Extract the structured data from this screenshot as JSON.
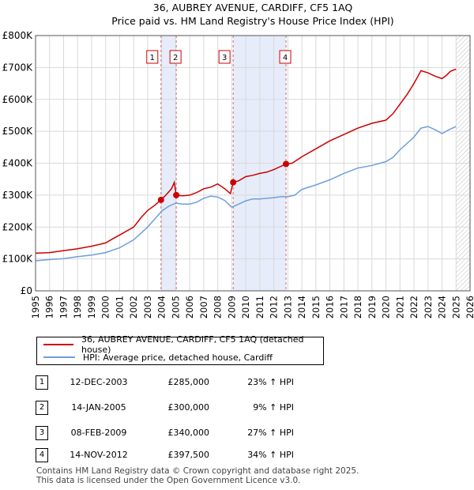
{
  "chart_data": {
    "type": "line",
    "title": "36, AUBREY AVENUE, CARDIFF, CF5 1AQ",
    "subtitle": "Price paid vs. HM Land Registry's House Price Index (HPI)",
    "xlim": [
      1995,
      2026
    ],
    "ylim": [
      0,
      800000
    ],
    "x_ticks": [
      "1995",
      "1996",
      "1997",
      "1998",
      "1999",
      "2000",
      "2001",
      "2002",
      "2003",
      "2004",
      "2005",
      "2006",
      "2007",
      "2008",
      "2009",
      "2010",
      "2011",
      "2012",
      "2013",
      "2014",
      "2015",
      "2016",
      "2017",
      "2018",
      "2019",
      "2020",
      "2021",
      "2022",
      "2023",
      "2024",
      "2025",
      "2026"
    ],
    "y_ticks": [
      {
        "value": 0,
        "label": "£0"
      },
      {
        "value": 100000,
        "label": "£100K"
      },
      {
        "value": 200000,
        "label": "£200K"
      },
      {
        "value": 300000,
        "label": "£300K"
      },
      {
        "value": 400000,
        "label": "£400K"
      },
      {
        "value": 500000,
        "label": "£500K"
      },
      {
        "value": 600000,
        "label": "£600K"
      },
      {
        "value": 700000,
        "label": "£700K"
      },
      {
        "value": 800000,
        "label": "£800K"
      }
    ],
    "series": [
      {
        "name": "36, AUBREY AVENUE, CARDIFF, CF5 1AQ (detached house)",
        "color": "#cc0000",
        "points": [
          [
            1995,
            118000
          ],
          [
            1996,
            120000
          ],
          [
            1997,
            126000
          ],
          [
            1998,
            132000
          ],
          [
            1999,
            140000
          ],
          [
            2000,
            150000
          ],
          [
            2000.5,
            163000
          ],
          [
            2001,
            175000
          ],
          [
            2002,
            200000
          ],
          [
            2002.5,
            228000
          ],
          [
            2003,
            252000
          ],
          [
            2003.5,
            268000
          ],
          [
            2003.95,
            285000
          ],
          [
            2004.3,
            300000
          ],
          [
            2004.7,
            320000
          ],
          [
            2004.9,
            340000
          ],
          [
            2005.04,
            300000
          ],
          [
            2005.5,
            298000
          ],
          [
            2006,
            300000
          ],
          [
            2006.5,
            308000
          ],
          [
            2007,
            320000
          ],
          [
            2007.5,
            325000
          ],
          [
            2008,
            335000
          ],
          [
            2008.5,
            320000
          ],
          [
            2008.9,
            305000
          ],
          [
            2009.1,
            340000
          ],
          [
            2009.5,
            345000
          ],
          [
            2010,
            358000
          ],
          [
            2010.5,
            362000
          ],
          [
            2011,
            368000
          ],
          [
            2011.5,
            372000
          ],
          [
            2012,
            380000
          ],
          [
            2012.87,
            397500
          ],
          [
            2013.3,
            400000
          ],
          [
            2014,
            420000
          ],
          [
            2015,
            445000
          ],
          [
            2016,
            470000
          ],
          [
            2017,
            490000
          ],
          [
            2018,
            510000
          ],
          [
            2019,
            525000
          ],
          [
            2020,
            535000
          ],
          [
            2020.5,
            555000
          ],
          [
            2021,
            585000
          ],
          [
            2021.5,
            615000
          ],
          [
            2022,
            650000
          ],
          [
            2022.5,
            690000
          ],
          [
            2023,
            683000
          ],
          [
            2023.5,
            673000
          ],
          [
            2024,
            665000
          ],
          [
            2024.3,
            675000
          ],
          [
            2024.6,
            688000
          ],
          [
            2025,
            695000
          ]
        ]
      },
      {
        "name": "HPI: Average price, detached house, Cardiff",
        "color": "#6f9fd8",
        "points": [
          [
            1995,
            94000
          ],
          [
            1996,
            98000
          ],
          [
            1997,
            101000
          ],
          [
            1998,
            107000
          ],
          [
            1999,
            112000
          ],
          [
            2000,
            120000
          ],
          [
            2001,
            135000
          ],
          [
            2002,
            160000
          ],
          [
            2003,
            200000
          ],
          [
            2003.5,
            225000
          ],
          [
            2004,
            250000
          ],
          [
            2004.5,
            265000
          ],
          [
            2005,
            275000
          ],
          [
            2005.5,
            272000
          ],
          [
            2006,
            272000
          ],
          [
            2006.5,
            278000
          ],
          [
            2007,
            290000
          ],
          [
            2007.5,
            297000
          ],
          [
            2008,
            294000
          ],
          [
            2008.5,
            283000
          ],
          [
            2009,
            262000
          ],
          [
            2009.5,
            272000
          ],
          [
            2010,
            282000
          ],
          [
            2010.5,
            288000
          ],
          [
            2011,
            288000
          ],
          [
            2011.5,
            290000
          ],
          [
            2012,
            292000
          ],
          [
            2012.5,
            295000
          ],
          [
            2013,
            295000
          ],
          [
            2013.5,
            300000
          ],
          [
            2014,
            318000
          ],
          [
            2015,
            332000
          ],
          [
            2016,
            348000
          ],
          [
            2017,
            368000
          ],
          [
            2018,
            385000
          ],
          [
            2019,
            393000
          ],
          [
            2020,
            405000
          ],
          [
            2020.5,
            418000
          ],
          [
            2021,
            442000
          ],
          [
            2021.5,
            462000
          ],
          [
            2022,
            482000
          ],
          [
            2022.5,
            510000
          ],
          [
            2023,
            515000
          ],
          [
            2023.5,
            505000
          ],
          [
            2024,
            493000
          ],
          [
            2024.5,
            505000
          ],
          [
            2025,
            515000
          ]
        ]
      }
    ],
    "shaded_regions": [
      [
        2003.95,
        2005.04
      ],
      [
        2009.1,
        2012.87
      ]
    ],
    "hatched_region": [
      2025.0,
      2026.0
    ],
    "transactions": [
      {
        "id": "1",
        "x": 2003.95,
        "value": 285000
      },
      {
        "id": "2",
        "x": 2005.04,
        "value": 300000
      },
      {
        "id": "3",
        "x": 2009.1,
        "value": 340000
      },
      {
        "id": "4",
        "x": 2012.87,
        "value": 397500
      }
    ]
  },
  "legend": {
    "property": "36, AUBREY AVENUE, CARDIFF, CF5 1AQ (detached house)",
    "hpi": "HPI: Average price, detached house, Cardiff"
  },
  "table": [
    {
      "id": "1",
      "date": "12-DEC-2003",
      "price": "£285,000",
      "hpi": "23% ↑ HPI"
    },
    {
      "id": "2",
      "date": "14-JAN-2005",
      "price": "£300,000",
      "hpi": "9% ↑ HPI"
    },
    {
      "id": "3",
      "date": "08-FEB-2009",
      "price": "£340,000",
      "hpi": "27% ↑ HPI"
    },
    {
      "id": "4",
      "date": "14-NOV-2012",
      "price": "£397,500",
      "hpi": "34% ↑ HPI"
    }
  ],
  "footer": {
    "line1": "Contains HM Land Registry data © Crown copyright and database right 2025.",
    "line2": "This data is licensed under the Open Government Licence v3.0."
  }
}
